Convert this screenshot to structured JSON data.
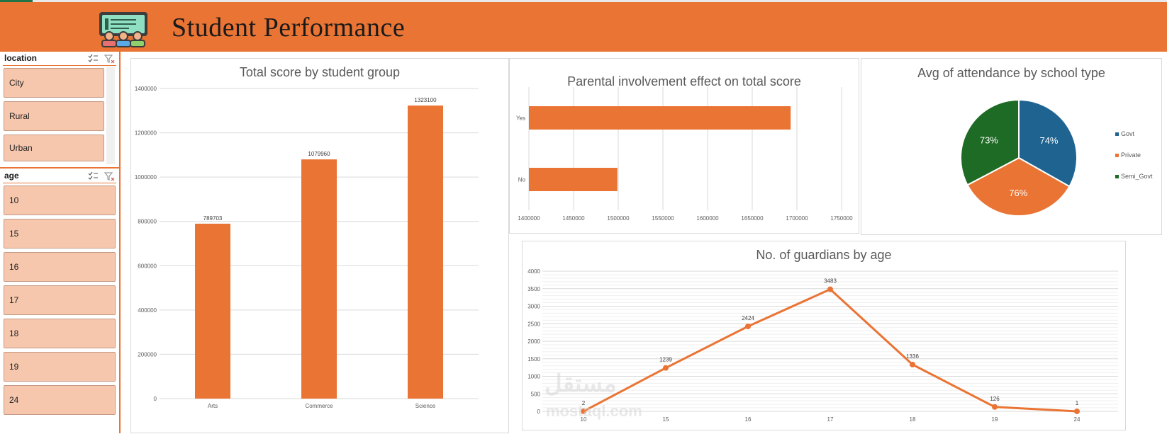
{
  "header": {
    "title": "Student Performance",
    "logo_icon": "classroom-presentation-icon"
  },
  "colors": {
    "accent": "#ea7434",
    "govt": "#1f6391",
    "private": "#ea7434",
    "semi_govt": "#1e6b25"
  },
  "slicers": {
    "location": {
      "label": "location",
      "items": [
        "City",
        "Rural",
        "Urban"
      ]
    },
    "age": {
      "label": "age",
      "items": [
        "10",
        "15",
        "16",
        "17",
        "18",
        "19",
        "24"
      ]
    }
  },
  "watermark": {
    "text": "مستقل",
    "sub": "mostaql.com"
  },
  "chart_data": [
    {
      "type": "bar",
      "title": "Total score by student group",
      "categories": [
        "Arts",
        "Commerce",
        "Science"
      ],
      "values": [
        789703,
        1079960,
        1323100
      ],
      "ylim": [
        0,
        1400000
      ],
      "yticks": [
        "0",
        "200000",
        "400000",
        "600000",
        "800000",
        "1000000",
        "1200000",
        "1400000"
      ],
      "grid": true
    },
    {
      "type": "bar",
      "orientation": "horizontal",
      "title": "Parental involvement effect on total score",
      "categories": [
        "Yes",
        "No"
      ],
      "values": [
        1693000,
        1499000
      ],
      "xlim": [
        1400000,
        1750000
      ],
      "xticks": [
        "1400000",
        "1450000",
        "1500000",
        "1550000",
        "1600000",
        "1650000",
        "1700000",
        "1750000"
      ],
      "grid": true
    },
    {
      "type": "pie",
      "title": "Avg of attendance by school type",
      "labels": [
        "Govt",
        "Private",
        "Semi_Govt"
      ],
      "values": [
        74,
        76,
        73
      ],
      "data_labels": [
        "74%",
        "76%",
        "73%"
      ],
      "legend": "right"
    },
    {
      "type": "line",
      "title": "No. of guardians by age",
      "categories": [
        "10",
        "15",
        "16",
        "17",
        "18",
        "19",
        "24"
      ],
      "values": [
        2,
        1239,
        2424,
        3483,
        1336,
        126,
        1
      ],
      "ylim": [
        0,
        4000
      ],
      "yticks": [
        "0",
        "500",
        "1000",
        "1500",
        "2000",
        "2500",
        "3000",
        "3500",
        "4000"
      ],
      "grid": true
    }
  ]
}
